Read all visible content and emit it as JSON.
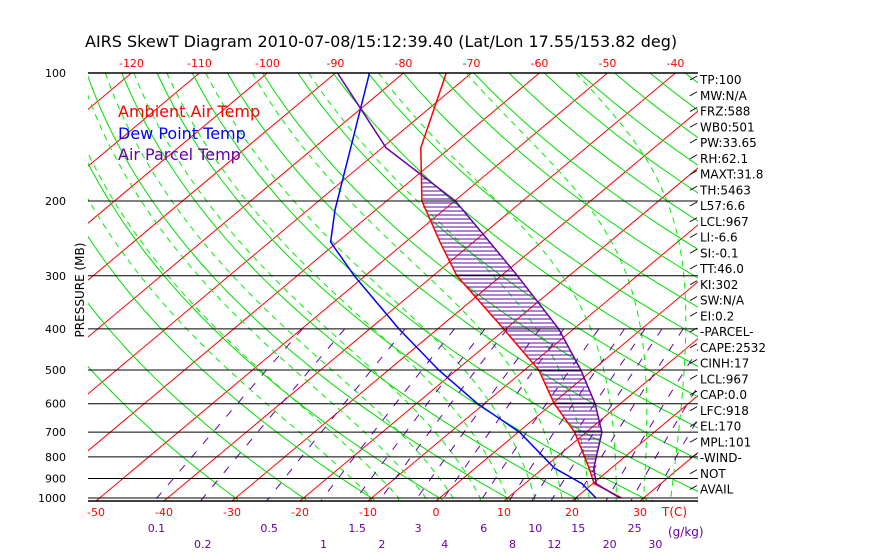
{
  "chart_data": {
    "type": "line",
    "title": "AIRS SkewT Diagram 2010-07-08/15:12:39.40 (Lat/Lon 17.55/153.82 deg)",
    "ylabel": "PRESSURE (MB)",
    "xlabel": "T(C)",
    "mixing_ratio_label": "(g/kg)",
    "ylim": [
      1015,
      100
    ],
    "y_ticks": [
      100,
      200,
      300,
      400,
      500,
      600,
      700,
      800,
      900,
      1000
    ],
    "x_ticks_bottom": [
      -50,
      -40,
      -30,
      -20,
      -10,
      0,
      10,
      20,
      30
    ],
    "x_ticks_top": [
      -120,
      -110,
      -100,
      -90,
      -80,
      -70,
      -60,
      -50,
      -40
    ],
    "mixing_ratios": [
      0.1,
      0.2,
      0.5,
      1,
      1.5,
      2,
      3,
      4,
      6,
      8,
      10,
      12,
      15,
      20,
      25,
      30
    ],
    "legend": [
      {
        "name": "Ambient Air Temp",
        "color": "#ff0000"
      },
      {
        "name": "Dew Point Temp",
        "color": "#0000ff"
      },
      {
        "name": "Air Parcel Temp",
        "color": "#6600aa"
      }
    ],
    "series": [
      {
        "name": "Ambient Air Temp",
        "p": [
          100,
          150,
          200,
          250,
          300,
          400,
          500,
          600,
          700,
          850,
          925,
          1000
        ],
        "T": [
          -73.7,
          -64.3,
          -54.8,
          -44.9,
          -36.5,
          -20.3,
          -7.9,
          0.3,
          8.3,
          16.7,
          20.2,
          26.8
        ]
      },
      {
        "name": "Dew Point Temp",
        "p": [
          100,
          150,
          210,
          250,
          300,
          400,
          500,
          600,
          700,
          850,
          925,
          1000
        ],
        "T": [
          -85,
          -74.6,
          -66,
          -61,
          -51.6,
          -35.7,
          -22.6,
          -11,
          0.2,
          11.6,
          18.4,
          23
        ]
      },
      {
        "name": "Air Parcel Temp",
        "p": [
          100,
          150,
          200,
          250,
          300,
          400,
          500,
          600,
          700,
          850,
          925,
          1000
        ],
        "T": [
          -89.7,
          -69.4,
          -49.9,
          -37.6,
          -27.6,
          -12.2,
          -1.7,
          6.3,
          12.3,
          17.4,
          20.5,
          26.5
        ]
      }
    ]
  },
  "indices": [
    "TP:100",
    "MW:N/A",
    "FRZ:588",
    "WB0:501",
    "PW:33.65",
    "RH:62.1",
    "MAXT:31.8",
    "TH:5463",
    "L57:6.6",
    "LCL:967",
    "LI:-6.6",
    "SI:-0.1",
    "TT:46.0",
    "KI:302",
    "SW:N/A",
    "EI:0.2",
    "-PARCEL-",
    "CAPE:2532",
    "CINH:17",
    "LCL:967",
    "CAP:0.0",
    "LFC:918",
    "EL:170",
    "MPL:101",
    "-WIND-",
    "NOT",
    "AVAIL"
  ]
}
